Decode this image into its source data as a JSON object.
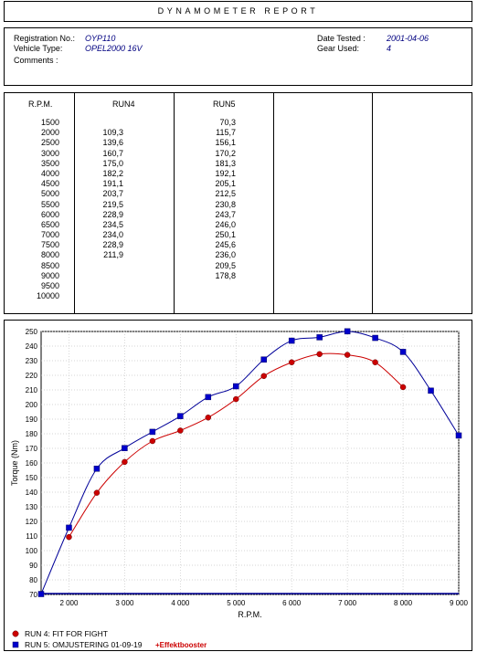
{
  "report": {
    "title": "DYNAMOMETER REPORT"
  },
  "info": {
    "registration_label": "Registration No.:",
    "registration_value": "OYP110",
    "vehicle_label": "Vehicle Type:",
    "vehicle_value": "OPEL2000 16V",
    "comments_label": "Comments :",
    "date_label": "Date Tested :",
    "date_value": "2001-04-06",
    "gear_label": "Gear Used:",
    "gear_value": "4"
  },
  "table": {
    "headers": [
      "R.P.M.",
      "RUN4",
      "RUN5"
    ],
    "rpm": [
      "1500",
      "2000",
      "2500",
      "3000",
      "3500",
      "4000",
      "4500",
      "5000",
      "5500",
      "6000",
      "6500",
      "7000",
      "7500",
      "8000",
      "8500",
      "9000",
      "9500",
      "10000"
    ],
    "run4": [
      "",
      "109,3",
      "139,6",
      "160,7",
      "175,0",
      "182,2",
      "191,1",
      "203,7",
      "219,5",
      "228,9",
      "234,5",
      "234,0",
      "228,9",
      "211,9",
      "",
      "",
      "",
      ""
    ],
    "run5": [
      "70,3",
      "115,7",
      "156,1",
      "170,2",
      "181,3",
      "192,1",
      "205,1",
      "212,5",
      "230,8",
      "243,7",
      "246,0",
      "250,1",
      "245,6",
      "236,0",
      "209,5",
      "178,8",
      "",
      ""
    ]
  },
  "chart_data": {
    "type": "line",
    "xlabel": "R.P.M.",
    "ylabel": "Torque (Nm)",
    "xlim": [
      1500,
      9000
    ],
    "ylim": [
      70,
      250
    ],
    "x_ticks": [
      2000,
      3000,
      4000,
      5000,
      6000,
      7000,
      8000,
      9000
    ],
    "x_tick_labels": [
      "2 000",
      "3 000",
      "4 000",
      "5 000",
      "6 000",
      "7 000",
      "8 000",
      "9 000"
    ],
    "y_ticks": [
      70,
      80,
      90,
      100,
      110,
      120,
      130,
      140,
      150,
      160,
      170,
      180,
      190,
      200,
      210,
      220,
      230,
      240,
      250
    ],
    "grid": true,
    "legend_position": "bottom",
    "series": [
      {
        "name": "RUN 4: FIT FOR FIGHT",
        "color": "#cc0000",
        "marker": "circle",
        "x": [
          2000,
          2500,
          3000,
          3500,
          4000,
          4500,
          5000,
          5500,
          6000,
          6500,
          7000,
          7500,
          8000
        ],
        "y": [
          109.3,
          139.6,
          160.7,
          175.0,
          182.2,
          191.1,
          203.7,
          219.5,
          228.9,
          234.5,
          234.0,
          228.9,
          211.9
        ]
      },
      {
        "name": "RUN 5: OMJUSTERING 01-09-19",
        "annotation": "+Effektbooster",
        "color": "#000099",
        "marker": "square",
        "x": [
          1500,
          2000,
          2500,
          3000,
          3500,
          4000,
          4500,
          5000,
          5500,
          6000,
          6500,
          7000,
          7500,
          8000,
          8500,
          9000
        ],
        "y": [
          70.3,
          115.7,
          156.1,
          170.2,
          181.3,
          192.1,
          205.1,
          212.5,
          230.8,
          243.7,
          246.0,
          250.1,
          245.6,
          236.0,
          209.5,
          178.8
        ]
      }
    ]
  }
}
